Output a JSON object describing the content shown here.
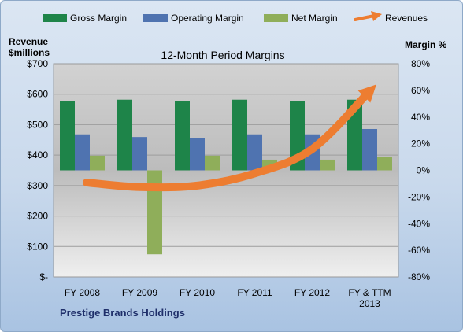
{
  "chart_data": {
    "type": "bar",
    "title": "12-Month Period Margins",
    "categories": [
      "FY 2008",
      "FY 2009",
      "FY 2010",
      "FY 2011",
      "FY 2012",
      "FY & TTM 2013"
    ],
    "series": [
      {
        "name": "Gross Margin",
        "axis": "right",
        "color": "#1e8449",
        "values": [
          52,
          53,
          52,
          53,
          52,
          53
        ]
      },
      {
        "name": "Operating Margin",
        "axis": "right",
        "color": "#4f73b0",
        "values": [
          27,
          25,
          24,
          27,
          27,
          31
        ]
      },
      {
        "name": "Net Margin",
        "axis": "right",
        "color": "#8fae5a",
        "values": [
          11,
          -63,
          11,
          8,
          8,
          10
        ]
      },
      {
        "name": "Revenues",
        "type": "line",
        "axis": "left",
        "color": "#ed7d31",
        "values": [
          310,
          295,
          300,
          340,
          420,
          610
        ]
      }
    ],
    "left_axis": {
      "label_lines": [
        "Revenue",
        "$millions"
      ],
      "ylim": [
        0,
        700
      ],
      "ticks": [
        0,
        100,
        200,
        300,
        400,
        500,
        600,
        700
      ],
      "tick_labels": [
        "$-",
        "$100",
        "$200",
        "$300",
        "$400",
        "$500",
        "$600",
        "$700"
      ]
    },
    "right_axis": {
      "label": "Margin %",
      "ylim": [
        -80,
        80
      ],
      "ticks": [
        -80,
        -60,
        -40,
        -20,
        0,
        20,
        40,
        60,
        80
      ],
      "tick_labels": [
        "-80%",
        "-60%",
        "-40%",
        "-20%",
        "0%",
        "20%",
        "40%",
        "60%",
        "80%"
      ]
    },
    "category_label_lines": [
      [
        "FY 2008"
      ],
      [
        "FY 2009"
      ],
      [
        "FY 2010"
      ],
      [
        "FY 2011"
      ],
      [
        "FY 2012"
      ],
      [
        "FY & TTM",
        "2013"
      ]
    ],
    "legend_position": "top",
    "grid": true,
    "footer": "Prestige Brands Holdings"
  }
}
